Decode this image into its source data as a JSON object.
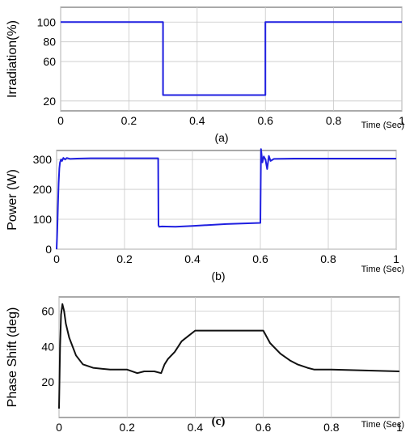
{
  "chart_data": [
    {
      "type": "line",
      "panel_label": "(a)",
      "ylabel": "Irradiation(%)",
      "xlabel": "Time (Sec)",
      "xlim": [
        0,
        1
      ],
      "ylim": [
        10,
        115
      ],
      "xticks": [
        0,
        0.2,
        0.4,
        0.6,
        0.8,
        1
      ],
      "xtick_labels": [
        "0",
        "0.2",
        "0.4",
        "0.6",
        "0.8",
        "1"
      ],
      "yticks": [
        20,
        60,
        80,
        100
      ],
      "ytick_labels": [
        "20",
        "60",
        "80",
        "100"
      ],
      "grid": true,
      "line_color": "#1f1fe0",
      "series": [
        {
          "x": [
            0,
            0.3,
            0.3,
            0.6,
            0.6,
            1
          ],
          "y": [
            100,
            100,
            26,
            26,
            100,
            100
          ]
        }
      ]
    },
    {
      "type": "line",
      "panel_label": "(b)",
      "ylabel": "Power (W)",
      "xlabel": "Time (Sec)",
      "xlim": [
        0,
        1
      ],
      "ylim": [
        0,
        330
      ],
      "xticks": [
        0,
        0.2,
        0.4,
        0.6,
        0.8,
        1
      ],
      "xtick_labels": [
        "0",
        "0.2",
        "0.4",
        "0.6",
        "0.8",
        "1"
      ],
      "yticks": [
        0,
        100,
        200,
        300
      ],
      "ytick_labels": [
        "0",
        "100",
        "200",
        "300"
      ],
      "grid": true,
      "line_color": "#1f1fe0",
      "series": [
        {
          "x": [
            0,
            0.002,
            0.004,
            0.006,
            0.008,
            0.01,
            0.013,
            0.016,
            0.02,
            0.025,
            0.03,
            0.04,
            0.06,
            0.1,
            0.2,
            0.299,
            0.3,
            0.302,
            0.31,
            0.35,
            0.4,
            0.5,
            0.599,
            0.6,
            0.602,
            0.606,
            0.61,
            0.615,
            0.62,
            0.625,
            0.63,
            0.64,
            0.7,
            0.8,
            0.9,
            1
          ],
          "y": [
            0,
            60,
            150,
            220,
            270,
            290,
            300,
            295,
            305,
            300,
            305,
            302,
            303,
            304,
            304,
            304,
            80,
            75,
            76,
            75,
            78,
            84,
            88,
            88,
            335,
            290,
            310,
            300,
            268,
            312,
            295,
            302,
            303,
            303,
            303,
            303
          ]
        }
      ]
    },
    {
      "type": "line",
      "panel_label": "(c)",
      "ylabel": "Phase Shift (deg)",
      "xlabel": "Time (Sec)",
      "xlim": [
        0,
        1
      ],
      "ylim": [
        0,
        68
      ],
      "xticks": [
        0,
        0.2,
        0.4,
        0.6,
        0.8,
        1
      ],
      "xtick_labels": [
        "0",
        "0.2",
        "0.4",
        "0.6",
        "0.8",
        "1"
      ],
      "yticks": [
        20,
        40,
        60
      ],
      "ytick_labels": [
        "20",
        "40",
        "60"
      ],
      "grid": true,
      "line_color": "#111111",
      "series": [
        {
          "x": [
            0,
            0.003,
            0.006,
            0.01,
            0.015,
            0.02,
            0.03,
            0.05,
            0.07,
            0.1,
            0.15,
            0.2,
            0.23,
            0.25,
            0.28,
            0.3,
            0.31,
            0.32,
            0.34,
            0.36,
            0.38,
            0.4,
            0.45,
            0.5,
            0.55,
            0.6,
            0.62,
            0.65,
            0.68,
            0.7,
            0.73,
            0.75,
            0.8,
            0.9,
            1
          ],
          "y": [
            5,
            40,
            58,
            64,
            60,
            53,
            45,
            35,
            30,
            28,
            27,
            27,
            25,
            26,
            26,
            25,
            30,
            33,
            37,
            43,
            46,
            49,
            49,
            49,
            49,
            49,
            42,
            36,
            32,
            30,
            28,
            27,
            27,
            26.5,
            26
          ]
        }
      ]
    }
  ]
}
